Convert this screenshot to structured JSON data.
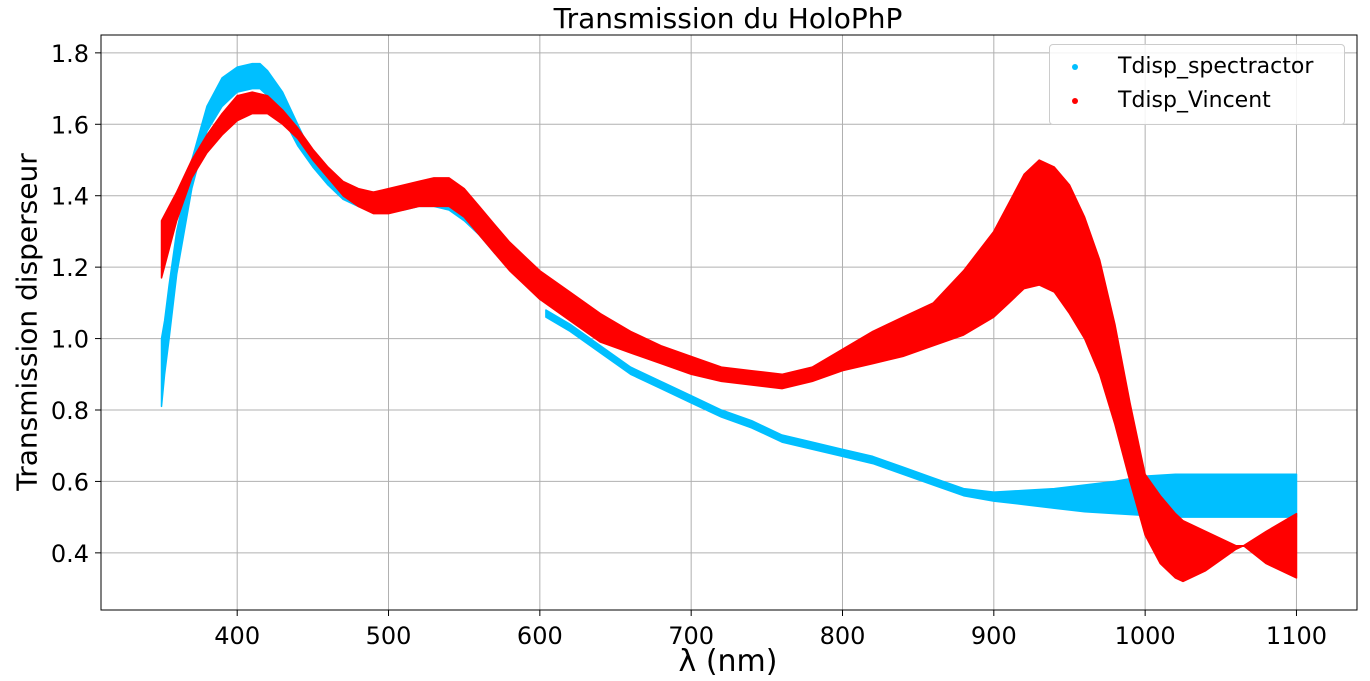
{
  "chart_data": {
    "type": "scatter",
    "title": "Transmission du HoloPhP",
    "xlabel": "λ (nm)",
    "ylabel": "Transmission disperseur",
    "xlim": [
      310,
      1140
    ],
    "ylim": [
      0.24,
      1.85
    ],
    "xticks": [
      400,
      500,
      600,
      700,
      800,
      900,
      1000,
      1100
    ],
    "yticks": [
      0.4,
      0.6,
      0.8,
      1.0,
      1.2,
      1.4,
      1.6,
      1.8
    ],
    "grid": true,
    "legend_position": "top-right",
    "series": [
      {
        "name": "Tdisp_spectractor",
        "color": "#00bfff",
        "x": [
          350,
          352,
          355,
          360,
          370,
          380,
          390,
          400,
          410,
          415,
          420,
          430,
          440,
          450,
          460,
          470,
          480,
          490,
          500,
          510,
          520,
          530,
          540,
          550,
          560,
          570,
          580,
          590,
          600,
          603
        ],
        "lower": [
          0.81,
          0.9,
          1.0,
          1.18,
          1.42,
          1.58,
          1.65,
          1.69,
          1.7,
          1.7,
          1.68,
          1.62,
          1.54,
          1.48,
          1.43,
          1.39,
          1.37,
          1.36,
          1.36,
          1.36,
          1.37,
          1.37,
          1.36,
          1.33,
          1.29,
          1.24,
          1.2,
          1.16,
          1.12,
          1.11
        ],
        "upper": [
          1.0,
          1.05,
          1.15,
          1.3,
          1.5,
          1.65,
          1.73,
          1.76,
          1.77,
          1.77,
          1.75,
          1.69,
          1.6,
          1.51,
          1.46,
          1.43,
          1.41,
          1.41,
          1.41,
          1.41,
          1.41,
          1.41,
          1.4,
          1.37,
          1.32,
          1.27,
          1.22,
          1.18,
          1.14,
          1.12
        ]
      },
      {
        "name": "Tdisp_spectractor",
        "color": "#00bfff",
        "x": [
          604,
          620,
          640,
          660,
          680,
          700,
          720,
          740,
          760,
          780,
          800,
          820,
          840,
          860,
          880,
          900,
          920,
          940,
          960,
          980,
          1000,
          1020,
          1040,
          1060,
          1080,
          1100
        ],
        "lower": [
          1.06,
          1.02,
          0.96,
          0.9,
          0.86,
          0.82,
          0.78,
          0.75,
          0.71,
          0.69,
          0.67,
          0.65,
          0.62,
          0.59,
          0.56,
          0.545,
          0.535,
          0.525,
          0.515,
          0.51,
          0.505,
          0.5,
          0.5,
          0.5,
          0.5,
          0.5
        ],
        "upper": [
          1.08,
          1.04,
          0.98,
          0.92,
          0.88,
          0.84,
          0.8,
          0.77,
          0.73,
          0.71,
          0.69,
          0.67,
          0.64,
          0.61,
          0.58,
          0.57,
          0.575,
          0.58,
          0.59,
          0.6,
          0.615,
          0.62,
          0.62,
          0.62,
          0.62,
          0.62
        ]
      },
      {
        "name": "Tdisp_Vincent",
        "color": "#ff0000",
        "x": [
          350,
          355,
          360,
          370,
          380,
          390,
          400,
          410,
          420,
          430,
          440,
          450,
          460,
          470,
          480,
          490,
          500,
          510,
          520,
          530,
          540,
          550,
          560,
          570,
          580,
          590,
          600,
          620,
          640,
          660,
          680,
          700,
          720,
          740,
          760,
          780,
          800,
          820,
          840,
          860,
          880,
          900,
          910,
          920,
          930,
          940,
          950,
          960,
          970,
          980,
          990,
          1000,
          1010,
          1020,
          1025,
          1040,
          1060,
          1065,
          1080,
          1100
        ],
        "lower": [
          1.17,
          1.25,
          1.33,
          1.45,
          1.52,
          1.57,
          1.61,
          1.63,
          1.63,
          1.6,
          1.56,
          1.5,
          1.45,
          1.4,
          1.37,
          1.35,
          1.35,
          1.36,
          1.37,
          1.37,
          1.37,
          1.34,
          1.29,
          1.24,
          1.19,
          1.15,
          1.11,
          1.05,
          0.99,
          0.96,
          0.93,
          0.9,
          0.88,
          0.87,
          0.86,
          0.88,
          0.91,
          0.93,
          0.95,
          0.98,
          1.01,
          1.06,
          1.1,
          1.14,
          1.15,
          1.13,
          1.07,
          1.0,
          0.9,
          0.76,
          0.6,
          0.45,
          0.37,
          0.33,
          0.32,
          0.35,
          0.41,
          0.42,
          0.37,
          0.33
        ],
        "upper": [
          1.33,
          1.37,
          1.41,
          1.5,
          1.57,
          1.63,
          1.68,
          1.69,
          1.68,
          1.64,
          1.59,
          1.53,
          1.48,
          1.44,
          1.42,
          1.41,
          1.42,
          1.43,
          1.44,
          1.45,
          1.45,
          1.42,
          1.37,
          1.32,
          1.27,
          1.23,
          1.19,
          1.13,
          1.07,
          1.02,
          0.98,
          0.95,
          0.92,
          0.91,
          0.9,
          0.92,
          0.97,
          1.02,
          1.06,
          1.1,
          1.19,
          1.3,
          1.38,
          1.46,
          1.5,
          1.48,
          1.43,
          1.34,
          1.22,
          1.04,
          0.82,
          0.62,
          0.56,
          0.51,
          0.49,
          0.46,
          0.42,
          0.42,
          0.46,
          0.51
        ]
      }
    ]
  }
}
